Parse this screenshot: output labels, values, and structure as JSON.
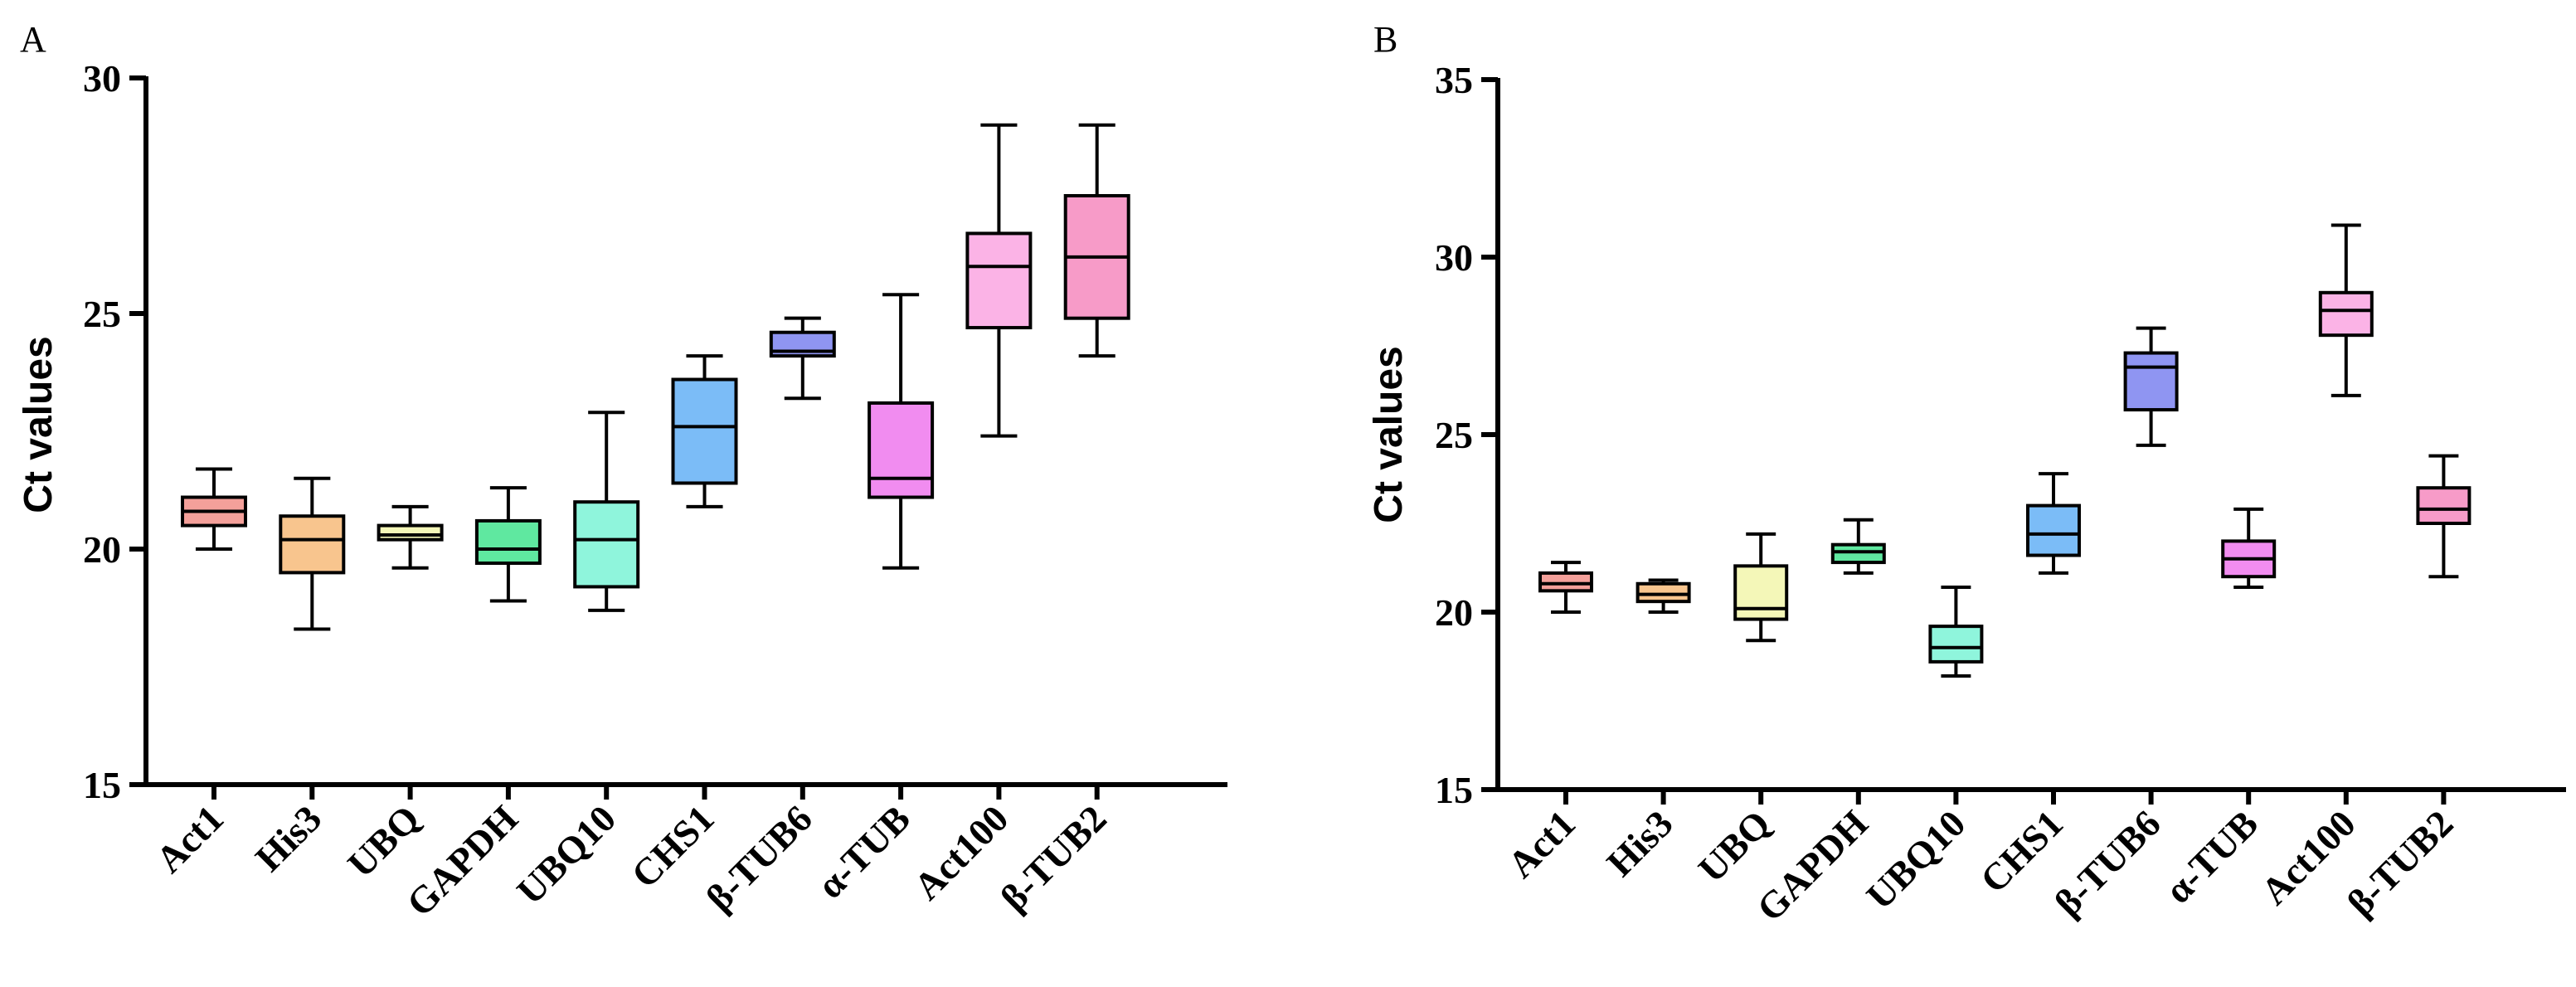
{
  "chart_data": [
    {
      "type": "box",
      "panel": "A",
      "ylabel": "Ct values",
      "ylim": [
        15,
        30
      ],
      "yticks": [
        15,
        20,
        25,
        30
      ],
      "categories": [
        "Act1",
        "His3",
        "UBQ",
        "GAPDH",
        "UBQ10",
        "CHS1",
        "β-TUB6",
        "α-TUB",
        "Act100",
        "β-TUB2"
      ],
      "colors": [
        "#f4a09a",
        "#f8c58e",
        "#f4f7b8",
        "#5fe8a0",
        "#8ff5dc",
        "#7bbcf7",
        "#8f95f2",
        "#f18cf0",
        "#fbb3e6",
        "#f79bc8"
      ],
      "series": [
        {
          "name": "Act1",
          "min": 20.0,
          "q1": 20.5,
          "median": 20.8,
          "q3": 21.1,
          "max": 21.7
        },
        {
          "name": "His3",
          "min": 18.3,
          "q1": 19.5,
          "median": 20.2,
          "q3": 20.7,
          "max": 21.5
        },
        {
          "name": "UBQ",
          "min": 19.6,
          "q1": 20.2,
          "median": 20.3,
          "q3": 20.5,
          "max": 20.9
        },
        {
          "name": "GAPDH",
          "min": 18.9,
          "q1": 19.7,
          "median": 20.0,
          "q3": 20.6,
          "max": 21.3
        },
        {
          "name": "UBQ10",
          "min": 18.7,
          "q1": 19.2,
          "median": 20.2,
          "q3": 21.0,
          "max": 22.9
        },
        {
          "name": "CHS1",
          "min": 20.9,
          "q1": 21.4,
          "median": 22.6,
          "q3": 23.6,
          "max": 24.1
        },
        {
          "name": "β-TUB6",
          "min": 23.2,
          "q1": 24.1,
          "median": 24.2,
          "q3": 24.6,
          "max": 24.9
        },
        {
          "name": "α-TUB",
          "min": 19.6,
          "q1": 21.1,
          "median": 21.5,
          "q3": 23.1,
          "max": 25.4
        },
        {
          "name": "Act100",
          "min": 22.4,
          "q1": 24.7,
          "median": 26.0,
          "q3": 26.7,
          "max": 29.0
        },
        {
          "name": "β-TUB2",
          "min": 24.1,
          "q1": 24.9,
          "median": 26.2,
          "q3": 27.5,
          "max": 29.0
        }
      ]
    },
    {
      "type": "box",
      "panel": "B",
      "ylabel": "Ct values",
      "ylim": [
        15,
        35
      ],
      "yticks": [
        15,
        20,
        25,
        30,
        35
      ],
      "categories": [
        "Act1",
        "His3",
        "UBQ",
        "GAPDH",
        "UBQ10",
        "CHS1",
        "β-TUB6",
        "α-TUB",
        "Act100",
        "β-TUB2"
      ],
      "colors": [
        "#f4a09a",
        "#f8c58e",
        "#f4f7b8",
        "#5fe8a0",
        "#8ff5dc",
        "#7bbcf7",
        "#8f95f2",
        "#f18cf0",
        "#fbb3e6",
        "#f79bc8"
      ],
      "series": [
        {
          "name": "Act1",
          "min": 20.0,
          "q1": 20.6,
          "median": 20.8,
          "q3": 21.1,
          "max": 21.4
        },
        {
          "name": "His3",
          "min": 20.0,
          "q1": 20.3,
          "median": 20.5,
          "q3": 20.8,
          "max": 20.9
        },
        {
          "name": "UBQ",
          "min": 19.2,
          "q1": 19.8,
          "median": 20.1,
          "q3": 21.3,
          "max": 22.2
        },
        {
          "name": "GAPDH",
          "min": 21.1,
          "q1": 21.4,
          "median": 21.7,
          "q3": 21.9,
          "max": 22.6
        },
        {
          "name": "UBQ10",
          "min": 18.2,
          "q1": 18.6,
          "median": 19.0,
          "q3": 19.6,
          "max": 20.7
        },
        {
          "name": "CHS1",
          "min": 21.1,
          "q1": 21.6,
          "median": 22.2,
          "q3": 23.0,
          "max": 23.9
        },
        {
          "name": "β-TUB6",
          "min": 24.7,
          "q1": 25.7,
          "median": 26.9,
          "q3": 27.3,
          "max": 28.0
        },
        {
          "name": "α-TUB",
          "min": 20.7,
          "q1": 21.0,
          "median": 21.5,
          "q3": 22.0,
          "max": 22.9
        },
        {
          "name": "Act100",
          "min": 26.1,
          "q1": 27.8,
          "median": 28.5,
          "q3": 29.0,
          "max": 30.9
        },
        {
          "name": "β-TUB2",
          "min": 21.0,
          "q1": 22.5,
          "median": 22.9,
          "q3": 23.5,
          "max": 24.4
        }
      ]
    }
  ]
}
